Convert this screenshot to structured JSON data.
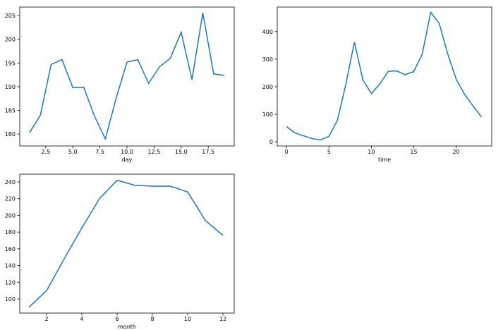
{
  "chart_data": [
    {
      "type": "line",
      "xlabel": "day",
      "color": "#1f77b4",
      "x": [
        1,
        2,
        3,
        4,
        5,
        6,
        7,
        8,
        9,
        10,
        11,
        12,
        13,
        14,
        15,
        16,
        17,
        18,
        19
      ],
      "values": [
        180.3,
        184,
        194.7,
        195.7,
        189.8,
        189.9,
        183.8,
        179,
        187.6,
        195.2,
        195.7,
        190.7,
        194.2,
        196,
        201.5,
        191.5,
        205.6,
        192.7,
        192.4
      ],
      "xlim": [
        0.1,
        19.9
      ],
      "ylim": [
        177.5,
        206.8
      ],
      "xticks": [
        2.5,
        {
          "value": 5,
          "label": "5.0"
        },
        7.5,
        {
          "value": 10,
          "label": "10.0"
        },
        12.5,
        {
          "value": 15,
          "label": "15.0"
        },
        17.5
      ],
      "yticks": [
        180,
        185,
        190,
        195,
        200,
        205
      ]
    },
    {
      "type": "line",
      "xlabel": "time",
      "color": "#1f77b4",
      "x": [
        0,
        1,
        2,
        3,
        4,
        5,
        6,
        7,
        8,
        9,
        10,
        11,
        12,
        13,
        14,
        15,
        16,
        17,
        18,
        19,
        20,
        21,
        22,
        23
      ],
      "values": [
        55,
        32,
        22,
        12,
        7,
        20,
        78,
        210,
        362,
        225,
        175,
        210,
        256,
        257,
        244,
        255,
        318,
        470,
        430,
        320,
        228,
        172,
        130,
        90
      ],
      "xlim": [
        -1.1,
        24.2
      ],
      "ylim": [
        -15,
        489
      ],
      "xticks": [
        0,
        5,
        10,
        15,
        20
      ],
      "yticks": [
        0,
        100,
        200,
        300,
        400
      ]
    },
    {
      "type": "line",
      "xlabel": "month",
      "color": "#1f77b4",
      "x": [
        1,
        2,
        3,
        4,
        5,
        6,
        7,
        8,
        9,
        10,
        11,
        12
      ],
      "values": [
        90,
        110,
        148,
        185,
        220,
        242,
        236,
        235,
        235,
        228,
        194,
        176
      ],
      "xlim": [
        0.48,
        12.64
      ],
      "ylim": [
        83.1,
        249.3
      ],
      "xticks": [
        2,
        4,
        6,
        8,
        10,
        12
      ],
      "yticks": [
        100,
        120,
        140,
        160,
        180,
        200,
        220,
        240
      ]
    }
  ]
}
